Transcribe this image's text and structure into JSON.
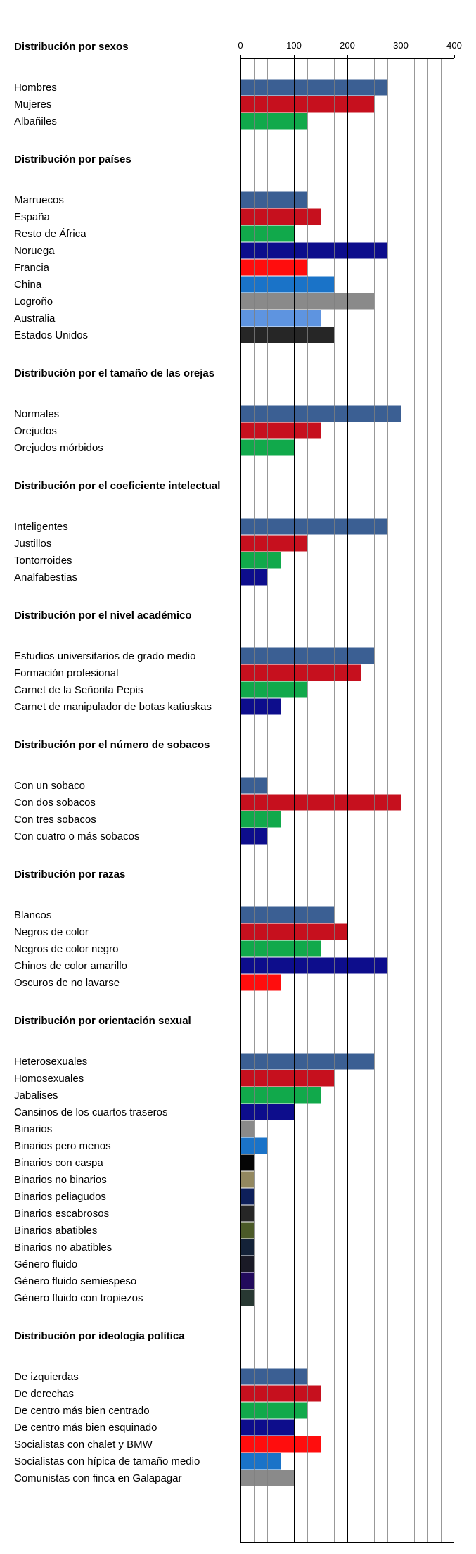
{
  "chart_data": {
    "type": "bar",
    "orientation": "horizontal",
    "xlim": [
      0,
      400
    ],
    "ticks": [
      0,
      100,
      200,
      300,
      400
    ],
    "minor_grid_step": 25,
    "grid": true,
    "tick_position": "top",
    "groups": [
      {
        "title": "Distribución por sexos",
        "items": [
          {
            "label": "Hombres",
            "value": 275,
            "color": "#3b5f93"
          },
          {
            "label": "Mujeres",
            "value": 250,
            "color": "#c6101e"
          },
          {
            "label": "Albañiles",
            "value": 125,
            "color": "#11a94b"
          }
        ]
      },
      {
        "title": "Distribución por países",
        "items": [
          {
            "label": "Marruecos",
            "value": 125,
            "color": "#3b5f93"
          },
          {
            "label": "España",
            "value": 150,
            "color": "#c6101e"
          },
          {
            "label": "Resto de África",
            "value": 100,
            "color": "#11a94b"
          },
          {
            "label": "Noruega",
            "value": 275,
            "color": "#0d0d8c"
          },
          {
            "label": "Francia",
            "value": 125,
            "color": "#ff0d0d"
          },
          {
            "label": "China",
            "value": 175,
            "color": "#1a73c8"
          },
          {
            "label": "Logroño",
            "value": 250,
            "color": "#8a8a8a"
          },
          {
            "label": "Australia",
            "value": 150,
            "color": "#5e94e0"
          },
          {
            "label": "Estados Unidos",
            "value": 175,
            "color": "#262626"
          }
        ]
      },
      {
        "title": "Distribución por el tamaño de las orejas",
        "items": [
          {
            "label": "Normales",
            "value": 300,
            "color": "#3b5f93"
          },
          {
            "label": "Orejudos",
            "value": 150,
            "color": "#c6101e"
          },
          {
            "label": "Orejudos mórbidos",
            "value": 100,
            "color": "#11a94b"
          }
        ]
      },
      {
        "title": "Distribución por el coeficiente intelectual",
        "items": [
          {
            "label": "Inteligentes",
            "value": 275,
            "color": "#3b5f93"
          },
          {
            "label": "Justillos",
            "value": 125,
            "color": "#c6101e"
          },
          {
            "label": "Tontorroides",
            "value": 75,
            "color": "#11a94b"
          },
          {
            "label": "Analfabestias",
            "value": 50,
            "color": "#0d0d8c"
          }
        ]
      },
      {
        "title": "Distribución por el nivel académico",
        "items": [
          {
            "label": "Estudios universitarios de grado medio",
            "value": 250,
            "color": "#3b5f93"
          },
          {
            "label": "Formación profesional",
            "value": 225,
            "color": "#c6101e"
          },
          {
            "label": "Carnet de la Señorita Pepis",
            "value": 125,
            "color": "#11a94b"
          },
          {
            "label": "Carnet de manipulador de botas katiuskas",
            "value": 75,
            "color": "#0d0d8c"
          }
        ]
      },
      {
        "title": "Distribución por el número de sobacos",
        "items": [
          {
            "label": "Con un sobaco",
            "value": 50,
            "color": "#3b5f93"
          },
          {
            "label": "Con dos sobacos",
            "value": 300,
            "color": "#c6101e"
          },
          {
            "label": "Con tres sobacos",
            "value": 75,
            "color": "#11a94b"
          },
          {
            "label": "Con cuatro o más sobacos",
            "value": 50,
            "color": "#0d0d8c"
          }
        ]
      },
      {
        "title": "Distribución por razas",
        "items": [
          {
            "label": "Blancos",
            "value": 175,
            "color": "#3b5f93"
          },
          {
            "label": "Negros de color",
            "value": 200,
            "color": "#c6101e"
          },
          {
            "label": "Negros de color negro",
            "value": 150,
            "color": "#11a94b"
          },
          {
            "label": "Chinos de color amarillo",
            "value": 275,
            "color": "#0d0d8c"
          },
          {
            "label": "Oscuros de no lavarse",
            "value": 75,
            "color": "#ff0d0d"
          }
        ]
      },
      {
        "title": "Distribución por orientación sexual",
        "items": [
          {
            "label": "Heterosexuales",
            "value": 250,
            "color": "#3b5f93"
          },
          {
            "label": "Homosexuales",
            "value": 175,
            "color": "#c6101e"
          },
          {
            "label": "Jabalises",
            "value": 150,
            "color": "#11a94b"
          },
          {
            "label": "Cansinos de los cuartos traseros",
            "value": 100,
            "color": "#0d0d8c"
          },
          {
            "label": "Binarios",
            "value": 25,
            "color": "#8a8a8a"
          },
          {
            "label": "Binarios pero menos",
            "value": 50,
            "color": "#1a73c8"
          },
          {
            "label": "Binarios con caspa",
            "value": 25,
            "color": "#050505"
          },
          {
            "label": "Binarios no binarios",
            "value": 25,
            "color": "#938860"
          },
          {
            "label": "Binarios peliagudos",
            "value": 25,
            "color": "#0d1f5a"
          },
          {
            "label": "Binarios escabrosos",
            "value": 25,
            "color": "#262626"
          },
          {
            "label": "Binarios abatibles",
            "value": 25,
            "color": "#4b5a28"
          },
          {
            "label": "Binarios no abatibles",
            "value": 25,
            "color": "#142238"
          },
          {
            "label": "Género fluido",
            "value": 25,
            "color": "#1a1a26"
          },
          {
            "label": "Género fluido semiespeso",
            "value": 25,
            "color": "#220a5c"
          },
          {
            "label": "Género fluido con tropiezos",
            "value": 25,
            "color": "#283832"
          }
        ]
      },
      {
        "title": "Distribución por ideología política",
        "items": [
          {
            "label": "De izquierdas",
            "value": 125,
            "color": "#3b5f93"
          },
          {
            "label": "De derechas",
            "value": 150,
            "color": "#c6101e"
          },
          {
            "label": "De centro más bien centrado",
            "value": 125,
            "color": "#11a94b"
          },
          {
            "label": "De centro más bien esquinado",
            "value": 100,
            "color": "#0d0d8c"
          },
          {
            "label": "Socialistas con chalet y BMW",
            "value": 150,
            "color": "#ff0d0d"
          },
          {
            "label": "Socialistas con hípica de tamaño medio",
            "value": 75,
            "color": "#1a73c8"
          },
          {
            "label": "Comunistas con finca en Galapagar",
            "value": 100,
            "color": "#8a8a8a"
          }
        ]
      }
    ]
  }
}
